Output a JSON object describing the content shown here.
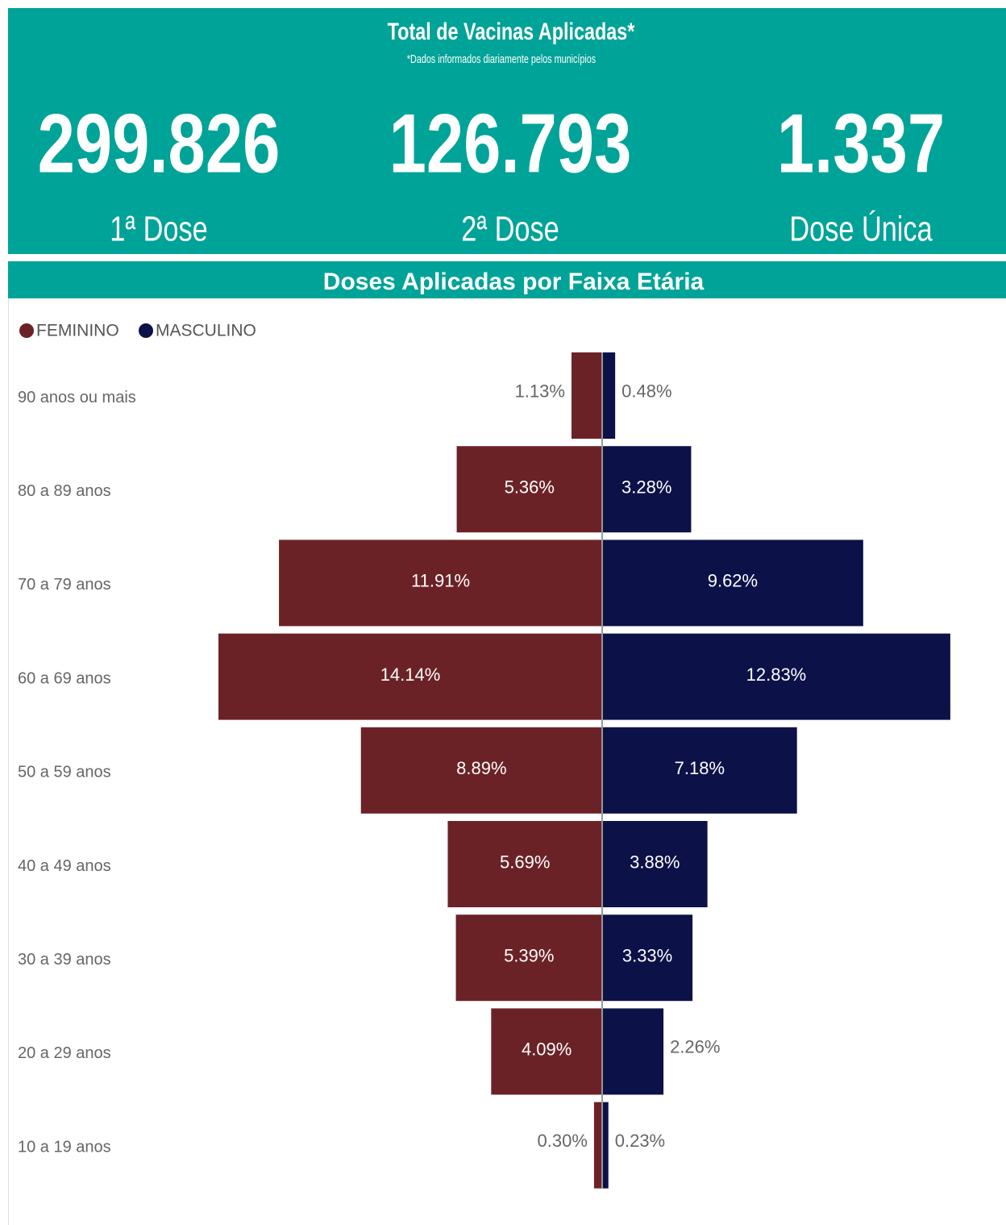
{
  "header": {
    "title": "Total de Vacinas Aplicadas*",
    "subtitle": "*Dados informados diariamente pelos municípios",
    "kpis": [
      {
        "value": {
          "value": 299826,
          "label": "299.826"
        },
        "label": "1ª Dose"
      },
      {
        "value": {
          "value": 126793,
          "label": "126.793"
        },
        "label": "2ª Dose"
      },
      {
        "value": {
          "value": 1337,
          "label": "1.337"
        },
        "label": "Dose Única"
      }
    ]
  },
  "chart_data": {
    "type": "bar",
    "title": "Doses Aplicadas por Faixa Etária",
    "legend": "top-left",
    "categories": [
      "90 anos ou mais",
      "80 a 89 anos",
      "70 a 79 anos",
      "60 a 69 anos",
      "50 a 59 anos",
      "40 a 49 anos",
      "30 a 39 anos",
      "20 a 29 anos",
      "10 a 19 anos"
    ],
    "series": [
      {
        "name": "FEMININO",
        "color": "#6b2226",
        "values": [
          1.13,
          5.36,
          11.91,
          14.14,
          8.89,
          5.69,
          5.39,
          4.09,
          0.3
        ],
        "value_labels": [
          "1.13%",
          "5.36%",
          "11.91%",
          "14.14%",
          "8.89%",
          "5.69%",
          "5.39%",
          "4.09%",
          "0.30%"
        ]
      },
      {
        "name": "MASCULINO",
        "color": "#0c1148",
        "values": [
          0.48,
          3.28,
          9.62,
          12.83,
          7.18,
          3.88,
          3.33,
          2.26,
          0.23
        ],
        "value_labels": [
          "0.48%",
          "3.28%",
          "9.62%",
          "12.83%",
          "7.18%",
          "3.88%",
          "3.33%",
          "2.26%",
          "0.23%"
        ]
      }
    ]
  }
}
